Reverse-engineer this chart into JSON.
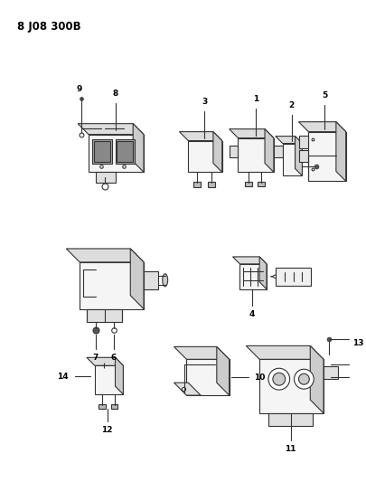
{
  "title": "8 J08 300B",
  "background_color": "#ffffff",
  "line_color": "#333333",
  "fig_width": 4.06,
  "fig_height": 5.33,
  "dpi": 100
}
